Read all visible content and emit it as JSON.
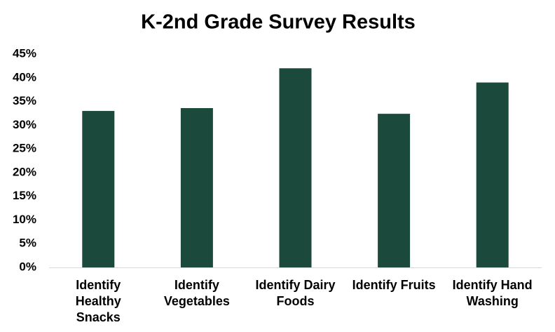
{
  "chart_data": {
    "type": "bar",
    "title": "K-2nd Grade Survey Results",
    "categories": [
      "Identify\nHealthy\nSnacks",
      "Identify\nVegetables",
      "Identify Dairy\nFoods",
      "Identify Fruits",
      "Identify Hand\nWashing"
    ],
    "values": [
      33.0,
      33.6,
      42.0,
      32.4,
      39.0
    ],
    "color": "#1b4a3c",
    "ylim": [
      0,
      45
    ],
    "yticks": [
      {
        "value": 0,
        "label": "0%"
      },
      {
        "value": 5,
        "label": "5%"
      },
      {
        "value": 10,
        "label": "10%"
      },
      {
        "value": 15,
        "label": "15%"
      },
      {
        "value": 20,
        "label": "20%"
      },
      {
        "value": 25,
        "label": "25%"
      },
      {
        "value": 30,
        "label": "30%"
      },
      {
        "value": 35,
        "label": "35%"
      },
      {
        "value": 40,
        "label": "40%"
      },
      {
        "value": 45,
        "label": "45%"
      }
    ],
    "grid": false
  }
}
